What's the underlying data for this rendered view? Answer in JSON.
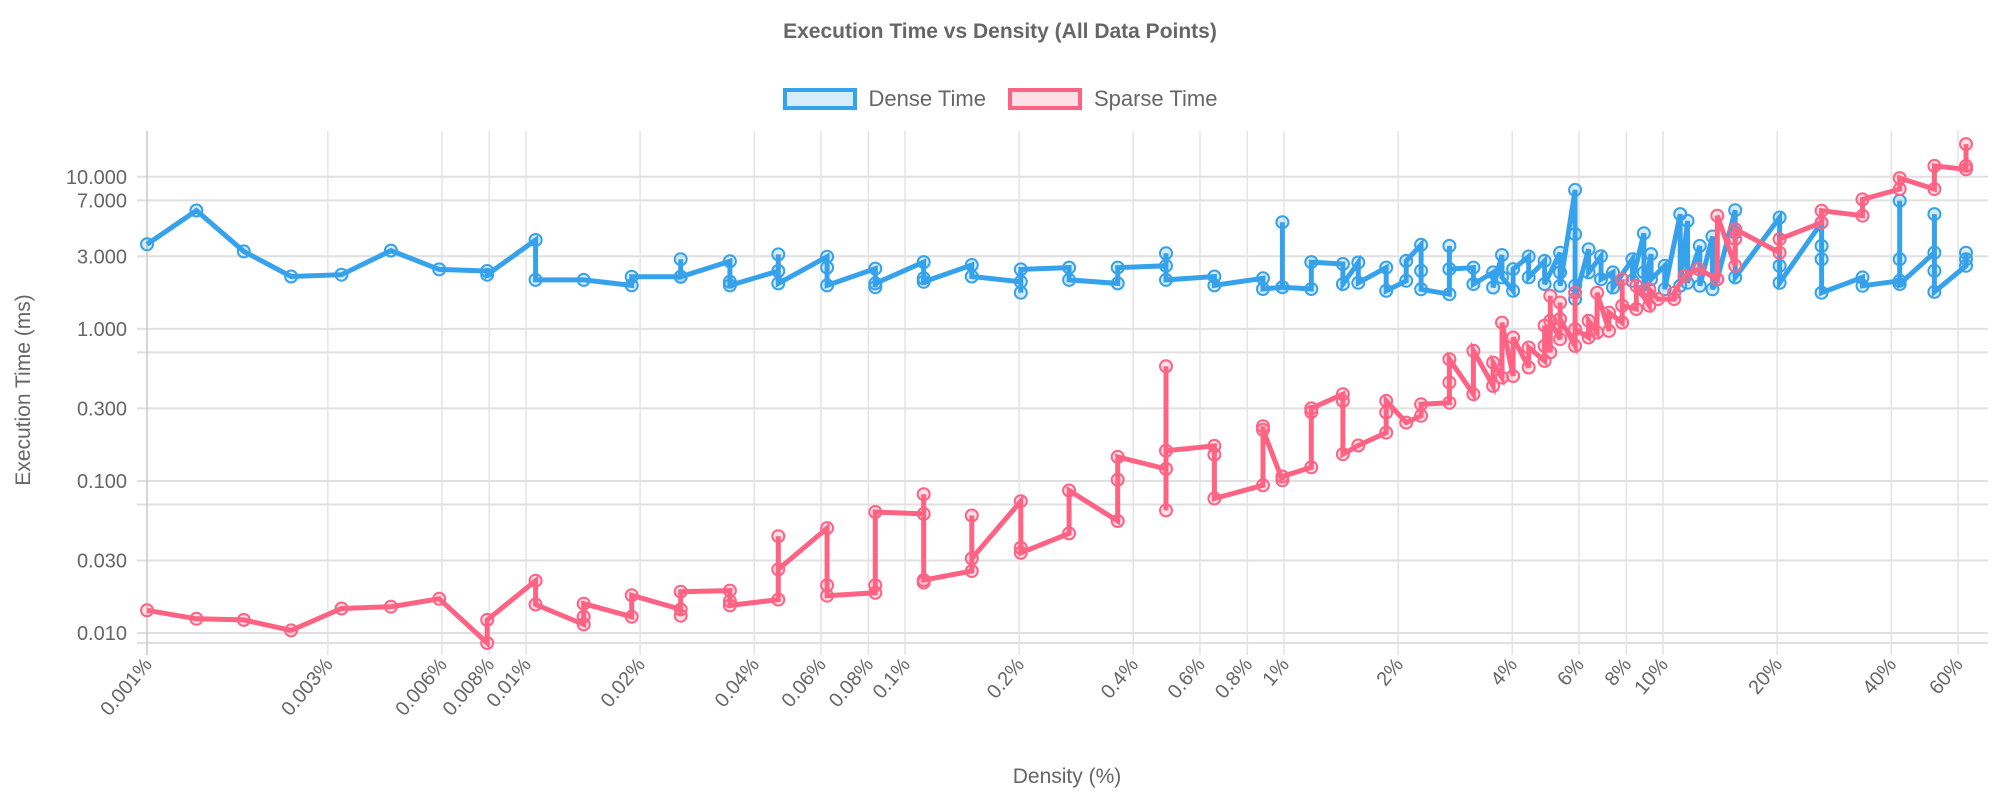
{
  "chart_data": {
    "type": "line",
    "title": "Execution Time vs Density (All Data Points)",
    "xlabel": "Density (%)",
    "ylabel": "Execution Time (ms)",
    "x_scale": "log",
    "y_scale": "log",
    "xlim": [
      0.001,
      72
    ],
    "ylim": [
      0.0086,
      20
    ],
    "grid": true,
    "legend_position": "top",
    "x_ticks": [
      {
        "value": 0.001,
        "label": "0.001%"
      },
      {
        "value": 0.003,
        "label": "0.003%"
      },
      {
        "value": 0.006,
        "label": "0.006%"
      },
      {
        "value": 0.008,
        "label": "0.008%"
      },
      {
        "value": 0.01,
        "label": "0.01%"
      },
      {
        "value": 0.02,
        "label": "0.02%"
      },
      {
        "value": 0.04,
        "label": "0.04%"
      },
      {
        "value": 0.06,
        "label": "0.06%"
      },
      {
        "value": 0.08,
        "label": "0.08%"
      },
      {
        "value": 0.1,
        "label": "0.1%"
      },
      {
        "value": 0.2,
        "label": "0.2%"
      },
      {
        "value": 0.4,
        "label": "0.4%"
      },
      {
        "value": 0.6,
        "label": "0.6%"
      },
      {
        "value": 0.8,
        "label": "0.8%"
      },
      {
        "value": 1,
        "label": "1%"
      },
      {
        "value": 2,
        "label": "2%"
      },
      {
        "value": 4,
        "label": "4%"
      },
      {
        "value": 6,
        "label": "6%"
      },
      {
        "value": 8,
        "label": "8%"
      },
      {
        "value": 10,
        "label": "10%"
      },
      {
        "value": 20,
        "label": "20%"
      },
      {
        "value": 40,
        "label": "40%"
      },
      {
        "value": 60,
        "label": "60%"
      }
    ],
    "y_ticks": [
      {
        "value": 0.01,
        "label": "0.010"
      },
      {
        "value": 0.03,
        "label": "0.030"
      },
      {
        "value": 0.1,
        "label": "0.100"
      },
      {
        "value": 0.3,
        "label": "0.300"
      },
      {
        "value": 1,
        "label": "1.000"
      },
      {
        "value": 3,
        "label": "3.000"
      },
      {
        "value": 7,
        "label": "7.000"
      },
      {
        "value": 10,
        "label": "10.000"
      }
    ],
    "unlabeled_y_gridlines": [
      0.0086,
      0.07,
      0.7
    ],
    "series": [
      {
        "name": "Dense Time",
        "color": "#36A2EB",
        "fill": "rgba(54,162,235,0.2)",
        "points": [
          [
            0.001,
            [
              3.6
            ]
          ],
          [
            0.00135,
            [
              6.0
            ]
          ],
          [
            0.0018,
            [
              3.23
            ]
          ],
          [
            0.0024,
            [
              2.21
            ]
          ],
          [
            0.00326,
            [
              2.27
            ]
          ],
          [
            0.0044,
            [
              3.27
            ]
          ],
          [
            0.0059,
            [
              2.46
            ]
          ],
          [
            0.0079,
            [
              2.4,
              2.27
            ]
          ],
          [
            0.0106,
            [
              3.84,
              2.1
            ]
          ],
          [
            0.0142,
            [
              2.1
            ]
          ],
          [
            0.019,
            [
              1.93,
              2.2
            ]
          ],
          [
            0.0256,
            [
              2.2,
              2.87,
              2.2
            ]
          ],
          [
            0.0345,
            [
              2.78,
              2.04,
              1.93
            ]
          ],
          [
            0.0463,
            [
              2.4,
              3.09,
              1.99
            ]
          ],
          [
            0.0623,
            [
              2.98,
              2.53,
              1.93
            ]
          ],
          [
            0.0835,
            [
              2.49,
              1.88,
              1.99
            ]
          ],
          [
            0.112,
            [
              2.75,
              2.15,
              2.04
            ]
          ],
          [
            0.15,
            [
              2.63,
              2.21
            ]
          ],
          [
            0.202,
            [
              2.04,
              1.73,
              2.46
            ]
          ],
          [
            0.271,
            [
              2.53,
              2.1
            ]
          ],
          [
            0.364,
            [
              1.99,
              2.53
            ]
          ],
          [
            0.488,
            [
              2.6,
              3.14,
              2.1
            ]
          ],
          [
            0.655,
            [
              2.21,
              1.93
            ]
          ],
          [
            0.88,
            [
              2.15,
              1.83
            ]
          ],
          [
            0.99,
            [
              1.88,
              5.03,
              1.88
            ]
          ],
          [
            1.18,
            [
              1.83,
              2.75
            ]
          ],
          [
            1.43,
            [
              2.67,
              1.97
            ]
          ],
          [
            1.57,
            [
              2.73,
              2.01
            ]
          ],
          [
            1.86,
            [
              2.53,
              1.78
            ]
          ],
          [
            2.1,
            [
              2.07,
              2.8
            ]
          ],
          [
            2.3,
            [
              3.57,
              2.41,
              1.82
            ]
          ],
          [
            2.73,
            [
              1.69,
              3.51,
              2.47
            ]
          ],
          [
            3.16,
            [
              2.53,
              1.97
            ]
          ],
          [
            3.56,
            [
              2.35,
              1.87
            ]
          ],
          [
            3.76,
            [
              3.06,
              2.18
            ]
          ],
          [
            4.02,
            [
              1.78,
              2.47
            ]
          ],
          [
            4.42,
            [
              2.99,
              2.18
            ]
          ],
          [
            4.87,
            [
              2.8,
              1.97
            ]
          ],
          [
            5.35,
            [
              3.17,
              2.35,
              1.92
            ]
          ],
          [
            5.86,
            [
              8.2,
              4.19,
              1.92,
              1.57
            ]
          ],
          [
            6.36,
            [
              3.34,
              2.35
            ]
          ],
          [
            6.86,
            [
              3.0,
              2.12
            ]
          ],
          [
            7.38,
            [
              2.35,
              1.87
            ]
          ],
          [
            8.3,
            [
              2.87,
              2.07
            ]
          ],
          [
            8.9,
            [
              4.25,
              2.35,
              1.78
            ]
          ],
          [
            9.3,
            [
              3.1,
              2.12
            ]
          ],
          [
            10.1,
            [
              2.6,
              1.82
            ]
          ],
          [
            11.1,
            [
              5.68,
              1.92
            ]
          ],
          [
            11.6,
            [
              5.13,
              2.01
            ]
          ],
          [
            12.5,
            [
              3.51,
              1.92
            ]
          ],
          [
            13.5,
            [
              4.05,
              1.82
            ]
          ],
          [
            13.9,
            [
              2.12
            ]
          ],
          [
            15.5,
            [
              6.03,
              4.31,
              2.18
            ]
          ],
          [
            20.3,
            [
              5.4,
              2.6,
              2.01
            ]
          ],
          [
            26.2,
            [
              5.0,
              3.51,
              2.87,
              1.73
            ]
          ],
          [
            33.6,
            [
              2.18,
              1.92
            ]
          ],
          [
            42.1,
            [
              2.07,
              2.87,
              6.95,
              1.97
            ]
          ],
          [
            52.0,
            [
              3.17,
              5.68,
              2.41,
              1.75
            ]
          ],
          [
            63,
            [
              2.6,
              2.87,
              3.17
            ]
          ]
        ]
      },
      {
        "name": "Sparse Time",
        "color": "#FF6384",
        "fill": "rgba(255,99,132,0.2)",
        "points": [
          [
            0.001,
            [
              0.0141
            ]
          ],
          [
            0.00135,
            [
              0.0124
            ]
          ],
          [
            0.0018,
            [
              0.0122
            ]
          ],
          [
            0.0024,
            [
              0.0104
            ]
          ],
          [
            0.00326,
            [
              0.0145
            ]
          ],
          [
            0.0044,
            [
              0.0149
            ]
          ],
          [
            0.0059,
            [
              0.0168
            ]
          ],
          [
            0.0079,
            [
              0.0086,
              0.0122
            ]
          ],
          [
            0.0106,
            [
              0.0221,
              0.0154
            ]
          ],
          [
            0.0142,
            [
              0.0114,
              0.0128,
              0.0156
            ]
          ],
          [
            0.019,
            [
              0.0128,
              0.0177
            ]
          ],
          [
            0.0256,
            [
              0.0143,
              0.013,
              0.0187
            ]
          ],
          [
            0.0345,
            [
              0.019,
              0.0162,
              0.0152
            ]
          ],
          [
            0.0463,
            [
              0.0166,
              0.0433,
              0.0262
            ]
          ],
          [
            0.0623,
            [
              0.049,
              0.0206,
              0.0176
            ]
          ],
          [
            0.0835,
            [
              0.0184,
              0.0206,
              0.0625
            ]
          ],
          [
            0.112,
            [
              0.0607,
              0.0818,
              0.0215,
              0.0223
            ]
          ],
          [
            0.15,
            [
              0.0256,
              0.0593,
              0.0309
            ]
          ],
          [
            0.202,
            [
              0.0736,
              0.0364,
              0.0337
            ]
          ],
          [
            0.271,
            [
              0.0452,
              0.0866
            ]
          ],
          [
            0.364,
            [
              0.0545,
              0.1017,
              0.144
            ]
          ],
          [
            0.488,
            [
              0.12,
              0.064,
              0.567,
              0.158
            ]
          ],
          [
            0.655,
            [
              0.17,
              0.149,
              0.0767
            ]
          ],
          [
            0.88,
            [
              0.0936,
              0.229,
              0.217
            ]
          ],
          [
            0.99,
            [
              0.101,
              0.107
            ]
          ],
          [
            1.18,
            [
              0.123,
              0.284,
              0.3
            ]
          ],
          [
            1.43,
            [
              0.372,
              0.336,
              0.15
            ]
          ],
          [
            1.57,
            [
              0.171
            ]
          ],
          [
            1.86,
            [
              0.208,
              0.282,
              0.336
            ]
          ],
          [
            2.1,
            [
              0.242
            ]
          ],
          [
            2.3,
            [
              0.268,
              0.319
            ]
          ],
          [
            2.73,
            [
              0.327,
              0.444,
              0.632
            ]
          ],
          [
            3.16,
            [
              0.372,
              0.717
            ]
          ],
          [
            3.56,
            [
              0.422,
              0.6
            ]
          ],
          [
            3.76,
            [
              0.478,
              1.1
            ]
          ],
          [
            4.02,
            [
              0.49,
              0.877
            ]
          ],
          [
            4.42,
            [
              0.557,
              0.754
            ]
          ],
          [
            4.87,
            [
              0.616,
              0.773,
              1.05
            ]
          ],
          [
            5.04,
            [
              0.7,
              1.65,
              1.13
            ]
          ],
          [
            5.35,
            [
              0.855,
              1.49,
              1.16
            ]
          ],
          [
            5.86,
            [
              0.773,
              1.73,
              0.995
            ]
          ],
          [
            6.36,
            [
              0.877,
              1.13
            ]
          ],
          [
            6.7,
            [
              0.946,
              1.73
            ]
          ],
          [
            7.2,
            [
              0.97,
              1.28
            ]
          ],
          [
            7.8,
            [
              1.1,
              2.12,
              1.42
            ]
          ],
          [
            8.5,
            [
              1.35,
              1.92
            ]
          ],
          [
            9.2,
            [
              1.42,
              1.82
            ]
          ],
          [
            9.7,
            [
              1.57
            ]
          ],
          [
            10.7,
            [
              1.57,
              1.73
            ]
          ],
          [
            11.4,
            [
              2.23
            ]
          ],
          [
            12.4,
            [
              2.47
            ]
          ],
          [
            13.9,
            [
              2.12,
              5.55
            ]
          ],
          [
            15.5,
            [
              2.6,
              3.89,
              4.52
            ]
          ],
          [
            20.3,
            [
              3.17,
              3.89
            ]
          ],
          [
            26.2,
            [
              5.0,
              5.98
            ]
          ],
          [
            33.6,
            [
              5.55,
              7.1
            ]
          ],
          [
            42.1,
            [
              8.3,
              9.8
            ]
          ],
          [
            52.0,
            [
              8.3,
              11.8
            ]
          ],
          [
            63,
            [
              11.2,
              11.8,
              16.4
            ]
          ]
        ]
      }
    ]
  }
}
